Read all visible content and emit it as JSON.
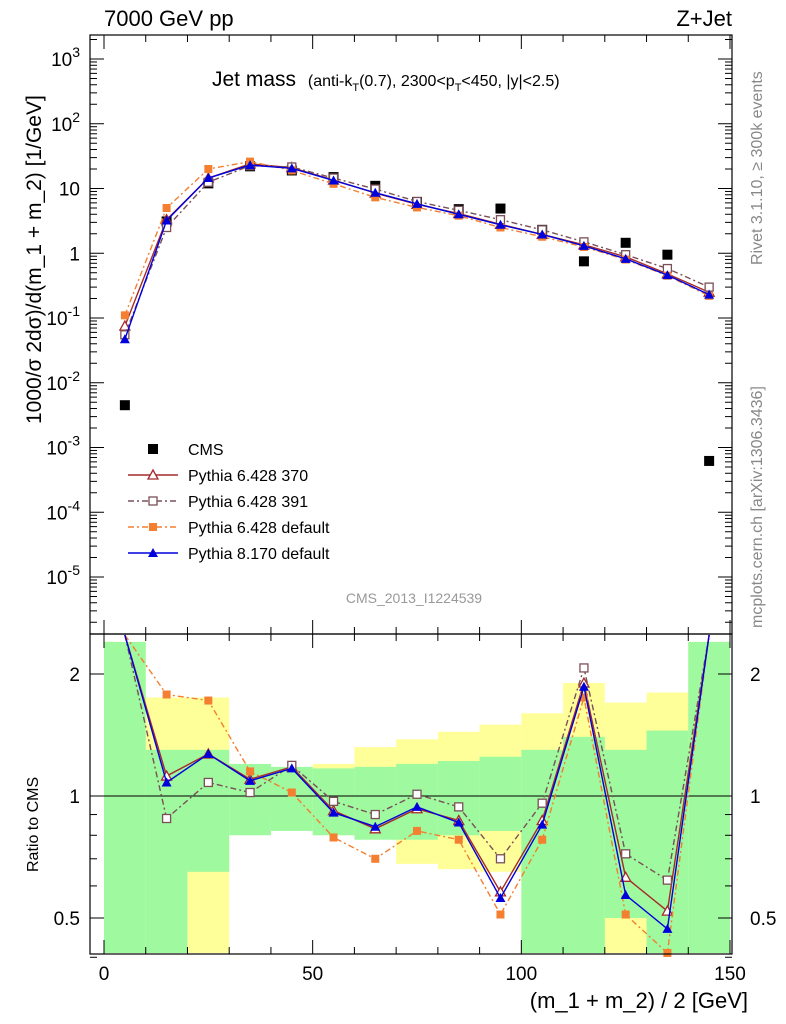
{
  "header": {
    "left": "7000 GeV pp",
    "right": "Z+Jet"
  },
  "side_labels": {
    "rivet": "Rivet 3.1.10, ≥ 300k events",
    "mcplots": "mcplots.cern.ch [arXiv:1306.3436]"
  },
  "analysis_id": "CMS_2013_I1224539",
  "title": {
    "main": "Jet mass",
    "detail": "(anti-kT(0.7), 2300<pT<450, |y|<2.5)"
  },
  "chart_data": [
    {
      "type": "line",
      "panel": "main",
      "log_y": true,
      "xlim": [
        0,
        150
      ],
      "ylim": [
        1e-06,
        2000
      ],
      "ylabel": "1000/σ 2dσ)/d(m_1 + m_2) [1/GeV]",
      "y_ticks": [
        "10^-5",
        "10^-4",
        "10^-3",
        "10^-2",
        "10^-1",
        "1",
        "10",
        "10^2",
        "10^3"
      ],
      "x": [
        5,
        15,
        25,
        35,
        45,
        55,
        65,
        75,
        85,
        95,
        105,
        115,
        125,
        135,
        145
      ],
      "series": [
        {
          "name": "CMS",
          "color": "#000000",
          "marker": "square",
          "values": [
            0.0045,
            3.1,
            12.0,
            22.0,
            19.0,
            15.0,
            11.0,
            6.2,
            4.8,
            4.9,
            2.3,
            0.75,
            1.45,
            0.95,
            0.00062
          ]
        },
        {
          "name": "Pythia 6.428 370",
          "color": "#a52a2a",
          "marker": "triangle-open",
          "dash": "",
          "values": [
            0.075,
            3.3,
            14.5,
            24.0,
            21.0,
            13.5,
            8.5,
            5.7,
            4.1,
            2.8,
            1.95,
            1.35,
            0.88,
            0.48,
            0.25
          ]
        },
        {
          "name": "Pythia 6.428 391",
          "color": "#7a5058",
          "marker": "square-open",
          "dash": "6,3,2,3",
          "values": [
            0.055,
            2.5,
            12.5,
            22.5,
            21.5,
            14.5,
            9.8,
            6.3,
            4.6,
            3.3,
            2.3,
            1.5,
            0.95,
            0.58,
            0.3
          ]
        },
        {
          "name": "Pythia 6.428 default",
          "color": "#f47f30",
          "marker": "square",
          "dash": "6,3,2,3",
          "values": [
            0.11,
            5.0,
            20.0,
            26.0,
            19.0,
            11.8,
            7.3,
            5.1,
            3.8,
            2.5,
            1.8,
            1.25,
            0.8,
            0.45,
            0.22
          ]
        },
        {
          "name": "Pythia 8.170 default",
          "color": "#0000dd",
          "marker": "triangle",
          "dash": "",
          "values": [
            0.047,
            3.2,
            14.5,
            23.0,
            20.5,
            13.3,
            8.6,
            5.8,
            4.0,
            2.75,
            1.95,
            1.3,
            0.82,
            0.46,
            0.23
          ]
        }
      ],
      "legend_position": "bottom-left"
    },
    {
      "type": "line",
      "panel": "ratio",
      "log_y": true,
      "xlim": [
        0,
        150
      ],
      "ylim": [
        0.35,
        2.4
      ],
      "xlabel": "(m_1 + m_2) / 2 [GeV]",
      "ylabel": "Ratio to CMS",
      "x_ticks": [
        "0",
        "50",
        "100",
        "150"
      ],
      "y_ticks": [
        "0.5",
        "1",
        "2"
      ],
      "x": [
        5,
        15,
        25,
        35,
        45,
        55,
        65,
        75,
        85,
        95,
        105,
        115,
        125,
        135,
        145
      ],
      "bands": {
        "edges": [
          0,
          10,
          20,
          30,
          40,
          50,
          60,
          70,
          80,
          90,
          100,
          110,
          120,
          130,
          140,
          150
        ],
        "inner": {
          "color": "#9ff99f",
          "low": [
            0.3,
            0.3,
            0.65,
            0.8,
            0.82,
            0.8,
            0.78,
            0.78,
            0.8,
            0.82,
            0.4,
            0.38,
            0.5,
            0.38,
            0.3
          ],
          "high": [
            2.4,
            1.3,
            1.3,
            1.2,
            1.18,
            1.17,
            1.18,
            1.2,
            1.22,
            1.25,
            1.3,
            1.4,
            1.3,
            1.45,
            2.4
          ]
        },
        "outer": {
          "color": "#ffff99",
          "low": [
            0.3,
            0.7,
            0.38,
            0.92,
            0.9,
            0.9,
            0.84,
            0.68,
            0.66,
            0.65,
            0.3,
            0.3,
            0.3,
            0.3,
            0.3
          ],
          "high": [
            2.4,
            1.75,
            1.75,
            1.1,
            1.15,
            1.2,
            1.32,
            1.38,
            1.44,
            1.5,
            1.6,
            1.9,
            1.7,
            1.8,
            2.4
          ]
        }
      },
      "series": [
        {
          "name": "Pythia 6.428 370",
          "color": "#a52a2a",
          "marker": "triangle-open",
          "dash": "",
          "values": [
            3.0,
            1.12,
            1.27,
            1.1,
            1.18,
            0.92,
            0.83,
            0.93,
            0.87,
            0.58,
            0.87,
            1.9,
            0.63,
            0.52,
            3.0
          ]
        },
        {
          "name": "Pythia 6.428 391",
          "color": "#7a5058",
          "marker": "square-open",
          "dash": "6,3,2,3",
          "values": [
            3.0,
            0.88,
            1.08,
            1.02,
            1.19,
            0.97,
            0.9,
            1.01,
            0.94,
            0.7,
            0.96,
            2.07,
            0.72,
            0.62,
            3.0
          ]
        },
        {
          "name": "Pythia 6.428 default",
          "color": "#f47f30",
          "marker": "square",
          "dash": "6,3,2,3",
          "values": [
            3.0,
            1.78,
            1.72,
            1.15,
            1.02,
            0.79,
            0.7,
            0.82,
            0.78,
            0.51,
            0.78,
            1.75,
            0.51,
            0.39,
            3.0
          ]
        },
        {
          "name": "Pythia 8.170 default",
          "color": "#0000dd",
          "marker": "triangle",
          "dash": "",
          "values": [
            3.0,
            1.08,
            1.27,
            1.09,
            1.17,
            0.91,
            0.84,
            0.94,
            0.86,
            0.56,
            0.85,
            1.86,
            0.57,
            0.47,
            3.0
          ]
        }
      ]
    }
  ]
}
